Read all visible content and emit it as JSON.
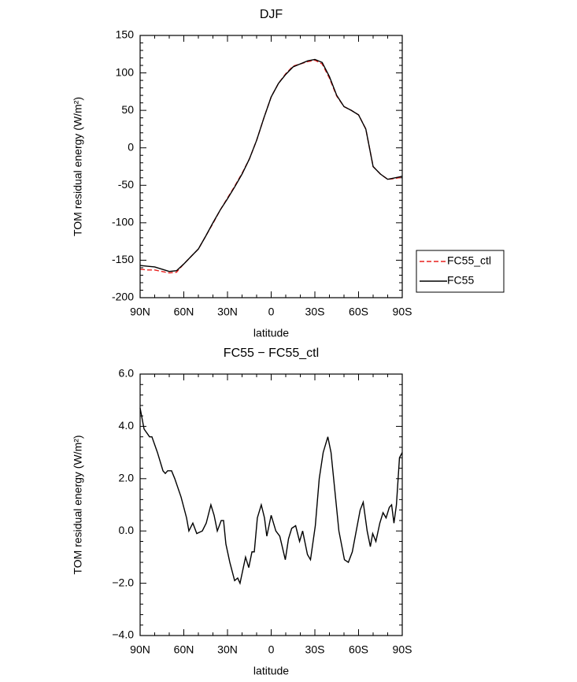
{
  "chart_data": [
    {
      "type": "line",
      "title": "DJF",
      "x_label": "latitude",
      "y_label": "TOM residual energy (W/m²)",
      "x": [
        90,
        85,
        80,
        75,
        70,
        65,
        60,
        55,
        50,
        45,
        40,
        35,
        30,
        25,
        20,
        15,
        10,
        5,
        0,
        -5,
        -10,
        -15,
        -20,
        -25,
        -30,
        -35,
        -40,
        -45,
        -50,
        -55,
        -60,
        -65,
        -70,
        -75,
        -80,
        -85,
        -90
      ],
      "series": [
        {
          "name": "FC55_ctl",
          "color": "#e8211f",
          "dash": "dashed",
          "values": [
            -162,
            -163,
            -163,
            -165,
            -167,
            -166,
            -155,
            -145,
            -135,
            -118,
            -101,
            -83,
            -67,
            -51,
            -34,
            -15,
            10,
            40,
            68,
            86,
            99,
            109,
            112,
            115,
            117,
            112,
            93,
            69,
            55,
            50,
            44,
            25,
            -25,
            -35,
            -42,
            -41,
            -39
          ]
        },
        {
          "name": "FC55",
          "color": "#000000",
          "dash": "solid",
          "values": [
            -157,
            -158,
            -159,
            -162,
            -165,
            -164,
            -155,
            -145,
            -135,
            -118,
            -100,
            -83,
            -68,
            -52,
            -35,
            -15,
            10,
            40,
            68,
            86,
            98,
            108,
            112,
            116,
            118,
            114,
            95,
            70,
            55,
            50,
            44,
            25,
            -25,
            -35,
            -42,
            -40,
            -38
          ]
        }
      ],
      "xlim": [
        90,
        -90
      ],
      "xticks": [
        {
          "value": 90,
          "label": "90N"
        },
        {
          "value": 60,
          "label": "60N"
        },
        {
          "value": 30,
          "label": "30N"
        },
        0,
        {
          "value": -30,
          "label": "30S"
        },
        {
          "value": -60,
          "label": "60S"
        },
        {
          "value": -90,
          "label": "90S"
        }
      ],
      "ylim": [
        -200,
        150
      ],
      "yticks": [
        -200,
        -150,
        -100,
        -50,
        0,
        50,
        100,
        150
      ],
      "legend": "right"
    },
    {
      "type": "line",
      "title": "FC55 − FC55_ctl",
      "x_label": "latitude",
      "y_label": "TOM residual energy (W/m²)",
      "x": [
        90,
        87.3,
        83.5,
        81.9,
        78.1,
        74.3,
        72.7,
        71.1,
        68.4,
        66.2,
        61.9,
        58.1,
        56.5,
        53.8,
        51.1,
        47.3,
        44.6,
        41.4,
        39.2,
        37.0,
        34.3,
        32.7,
        31.1,
        28.4,
        25.1,
        23.0,
        21.4,
        17.6,
        15.4,
        13.2,
        11.6,
        9.5,
        6.8,
        4.6,
        3.0,
        0,
        -3.2,
        -5.9,
        -9.7,
        -11.9,
        -14.1,
        -16.8,
        -19.5,
        -21.6,
        -24.9,
        -27.0,
        -30.3,
        -33.0,
        -35.7,
        -38.9,
        -41.1,
        -43.8,
        -46.5,
        -50.3,
        -53.0,
        -55.7,
        -58.4,
        -61.1,
        -63.2,
        -65.9,
        -68.1,
        -69.7,
        -71.9,
        -74.6,
        -76.8,
        -78.9,
        -81.1,
        -82.7,
        -84.3,
        -86.0,
        -88.1,
        -90
      ],
      "series": [
        {
          "name": "FC55 − FC55_ctl",
          "color": "#000000",
          "values": [
            4.7,
            3.9,
            3.6,
            3.6,
            3.0,
            2.3,
            2.2,
            2.3,
            2.3,
            2.0,
            1.3,
            0.5,
            0.0,
            0.3,
            -0.1,
            0.0,
            0.3,
            1.0,
            0.6,
            0.0,
            0.4,
            0.4,
            -0.5,
            -1.2,
            -1.9,
            -1.8,
            -2.0,
            -1.0,
            -1.4,
            -0.8,
            -0.8,
            0.5,
            1.0,
            0.5,
            -0.2,
            0.6,
            0.0,
            -0.2,
            -1.1,
            -0.3,
            0.1,
            0.2,
            -0.4,
            0.0,
            -0.9,
            -1.1,
            0.2,
            2.0,
            3.0,
            3.6,
            3.0,
            1.5,
            0.0,
            -1.1,
            -1.2,
            -0.8,
            0.0,
            0.8,
            1.1,
            0.0,
            -0.6,
            -0.1,
            -0.4,
            0.3,
            0.7,
            0.5,
            0.9,
            1.0,
            0.3,
            1.0,
            2.8,
            3.0
          ]
        }
      ],
      "xlim": [
        90,
        -90
      ],
      "xticks": [
        {
          "value": 90,
          "label": "90N"
        },
        {
          "value": 60,
          "label": "60N"
        },
        {
          "value": 30,
          "label": "30N"
        },
        0,
        {
          "value": -30,
          "label": "30S"
        },
        {
          "value": -60,
          "label": "60S"
        },
        {
          "value": -90,
          "label": "90S"
        }
      ],
      "ylim": [
        -4,
        6
      ],
      "yticks": [
        {
          "value": -4,
          "label": "−4.0"
        },
        {
          "value": -2,
          "label": "−2.0"
        },
        {
          "value": 0,
          "label": "0.0"
        },
        {
          "value": 2,
          "label": "2.0"
        },
        {
          "value": 4,
          "label": "4.0"
        },
        {
          "value": 6,
          "label": "6.0"
        }
      ]
    }
  ]
}
